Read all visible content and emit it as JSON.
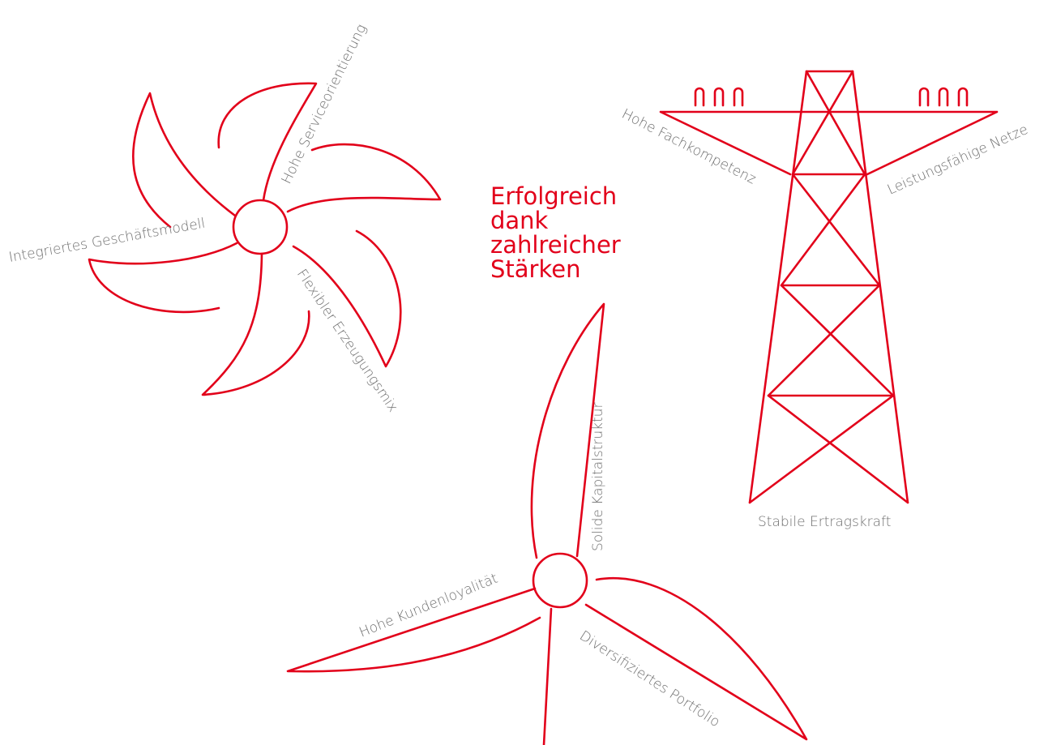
{
  "title_lines": [
    "Erfolgreich",
    "dank",
    "zahlreicher",
    "Stärken"
  ],
  "turbine_left": {
    "labels": [
      "Hohe Serviceorientierung",
      "Integriertes Geschäftsmodell",
      "Flexibler Erzeugungsmix"
    ]
  },
  "pylon": {
    "labels": [
      "Hohe Fachkompetenz",
      "Leistungsfähige Netze",
      "Stabile Ertragskraft"
    ]
  },
  "turbine_bottom": {
    "labels": [
      "Solide Kapitalstruktur",
      "Hohe Kundenloyalität",
      "Diversifiziertes Portfolio"
    ]
  }
}
